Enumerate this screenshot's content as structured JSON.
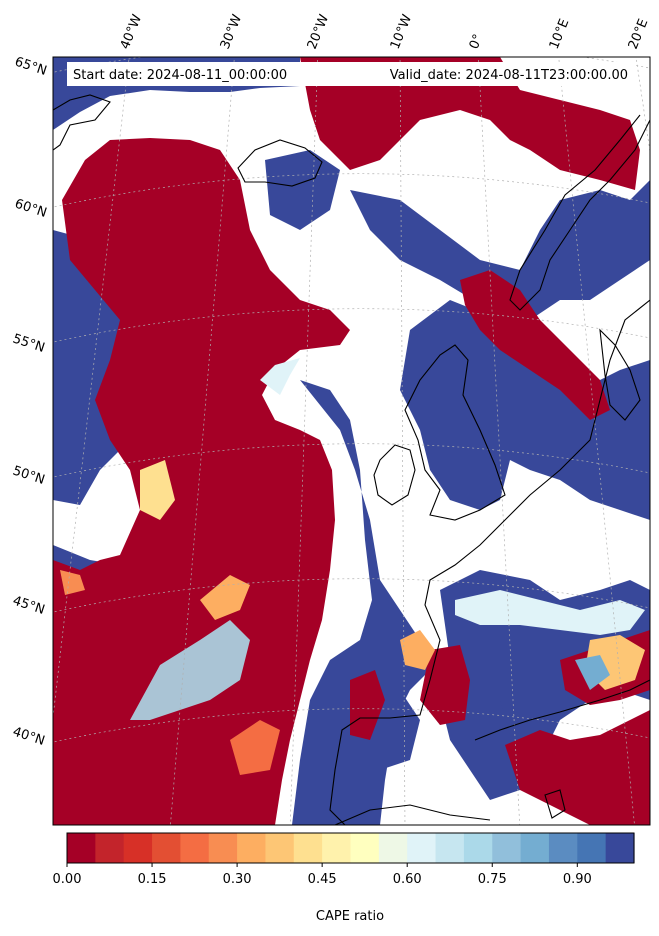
{
  "header": {
    "start_date": "Start date: 2024-08-11_00:00:00",
    "valid_date": "Valid_date: 2024-08-11T23:00:00.00"
  },
  "map": {
    "projection": "conic",
    "lon_labels": [
      "40°W",
      "30°W",
      "20°W",
      "10°W",
      "0°",
      "10°E",
      "20°E"
    ],
    "lat_labels": [
      "65°N",
      "60°N",
      "55°N",
      "50°N",
      "45°N",
      "40°N"
    ],
    "gridlines": true,
    "coastlines": true
  },
  "colorbar": {
    "label": "CAPE ratio",
    "tick_labels": [
      "0.00",
      "0.15",
      "0.30",
      "0.45",
      "0.60",
      "0.75",
      "0.90"
    ],
    "tick_values": [
      0.0,
      0.15,
      0.3,
      0.45,
      0.6,
      0.75,
      0.9
    ],
    "range": [
      0.0,
      1.0
    ],
    "levels": 20,
    "colormap": "RdYlBu",
    "colors": [
      "#a50026",
      "#c3242b",
      "#d73027",
      "#e34f33",
      "#f46d43",
      "#f88d52",
      "#fdae61",
      "#fdc675",
      "#fee090",
      "#fff2ac",
      "#ffffbf",
      "#eef8e6",
      "#e0f3f8",
      "#c6e6f0",
      "#abd9e9",
      "#91bfdb",
      "#74add1",
      "#5b8cc1",
      "#4575b4",
      "#38489a"
    ]
  }
}
